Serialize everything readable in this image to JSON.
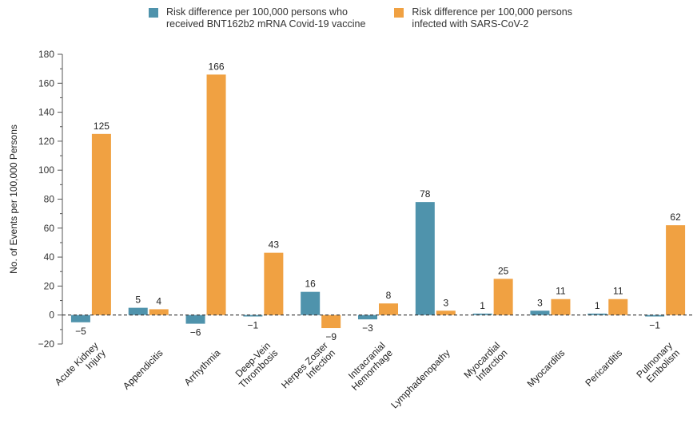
{
  "chart_data": {
    "type": "bar",
    "ylabel": "No. of Events per 100,000 Persons",
    "ylim": [
      -20,
      180
    ],
    "yticks": [
      -20,
      0,
      20,
      40,
      60,
      80,
      100,
      120,
      140,
      160,
      180
    ],
    "legend_position": "top",
    "grid": false,
    "categories": [
      [
        "Acute Kidney",
        "Injury"
      ],
      [
        "Appendicitis"
      ],
      [
        "Arrhythmia"
      ],
      [
        "Deep-Vein",
        "Thrombosis"
      ],
      [
        "Herpes Zoster",
        "Infection"
      ],
      [
        "Intracranial",
        "Hemorrhage"
      ],
      [
        "Lymphadenopathy"
      ],
      [
        "Myocardial",
        "Infarction"
      ],
      [
        "Myocarditis"
      ],
      [
        "Pericarditis"
      ],
      [
        "Pulmonary",
        "Embolism"
      ]
    ],
    "series": [
      {
        "name": "Risk difference per 100,000 persons who received BNT162b2 mRNA Covid-19 vaccine",
        "color": "#4f93ac",
        "values": [
          -5,
          5,
          -6,
          -1,
          16,
          -3,
          78,
          1,
          3,
          1,
          -1
        ],
        "labels": [
          "−5",
          "5",
          "−6",
          "−1",
          "16",
          "−3",
          "78",
          "1",
          "3",
          "1",
          "−1"
        ]
      },
      {
        "name": "Risk difference per 100,000 persons infected with SARS-CoV-2",
        "color": "#f0a142",
        "values": [
          125,
          4,
          166,
          43,
          -9,
          8,
          3,
          25,
          11,
          11,
          62
        ],
        "labels": [
          "125",
          "4",
          "166",
          "43",
          "−9",
          "8",
          "3",
          "25",
          "11",
          "11",
          "62"
        ]
      }
    ],
    "legend": [
      {
        "text": "Risk difference per 100,000 persons who\nreceived BNT162b2 mRNA Covid-19 vaccine",
        "color": "#4f93ac"
      },
      {
        "text": "Risk difference per 100,000 persons\ninfected with SARS-CoV-2",
        "color": "#f0a142"
      }
    ]
  }
}
